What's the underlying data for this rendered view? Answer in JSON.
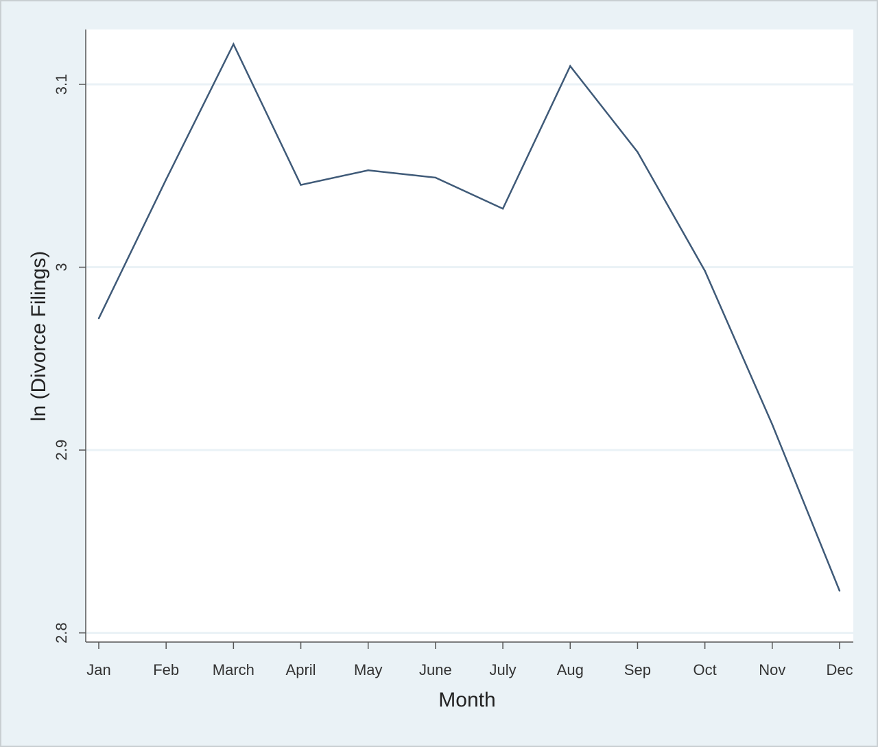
{
  "chart_data": {
    "type": "line",
    "title": "",
    "xlabel": "Month",
    "ylabel": "ln (Divorce Filings)",
    "categories": [
      "Jan",
      "Feb",
      "March",
      "April",
      "May",
      "June",
      "July",
      "Aug",
      "Sep",
      "Oct",
      "Nov",
      "Dec"
    ],
    "series": [
      {
        "values": [
          2.972,
          3.048,
          3.122,
          3.045,
          3.053,
          3.049,
          3.032,
          3.11,
          3.063,
          2.998,
          2.914,
          2.823
        ]
      }
    ],
    "ylim": [
      2.795,
      3.13
    ],
    "yticks": [
      2.8,
      2.9,
      3,
      3.1
    ],
    "ytick_labels": [
      "2.8",
      "2.9",
      "3",
      "3.1"
    ],
    "grid": "horizontal",
    "legend": "none",
    "colors": {
      "line": "#3f5a78",
      "plot_background": "#ffffff",
      "outer_background": "#eaf2f6",
      "gridline": "#eaf2f6"
    }
  }
}
